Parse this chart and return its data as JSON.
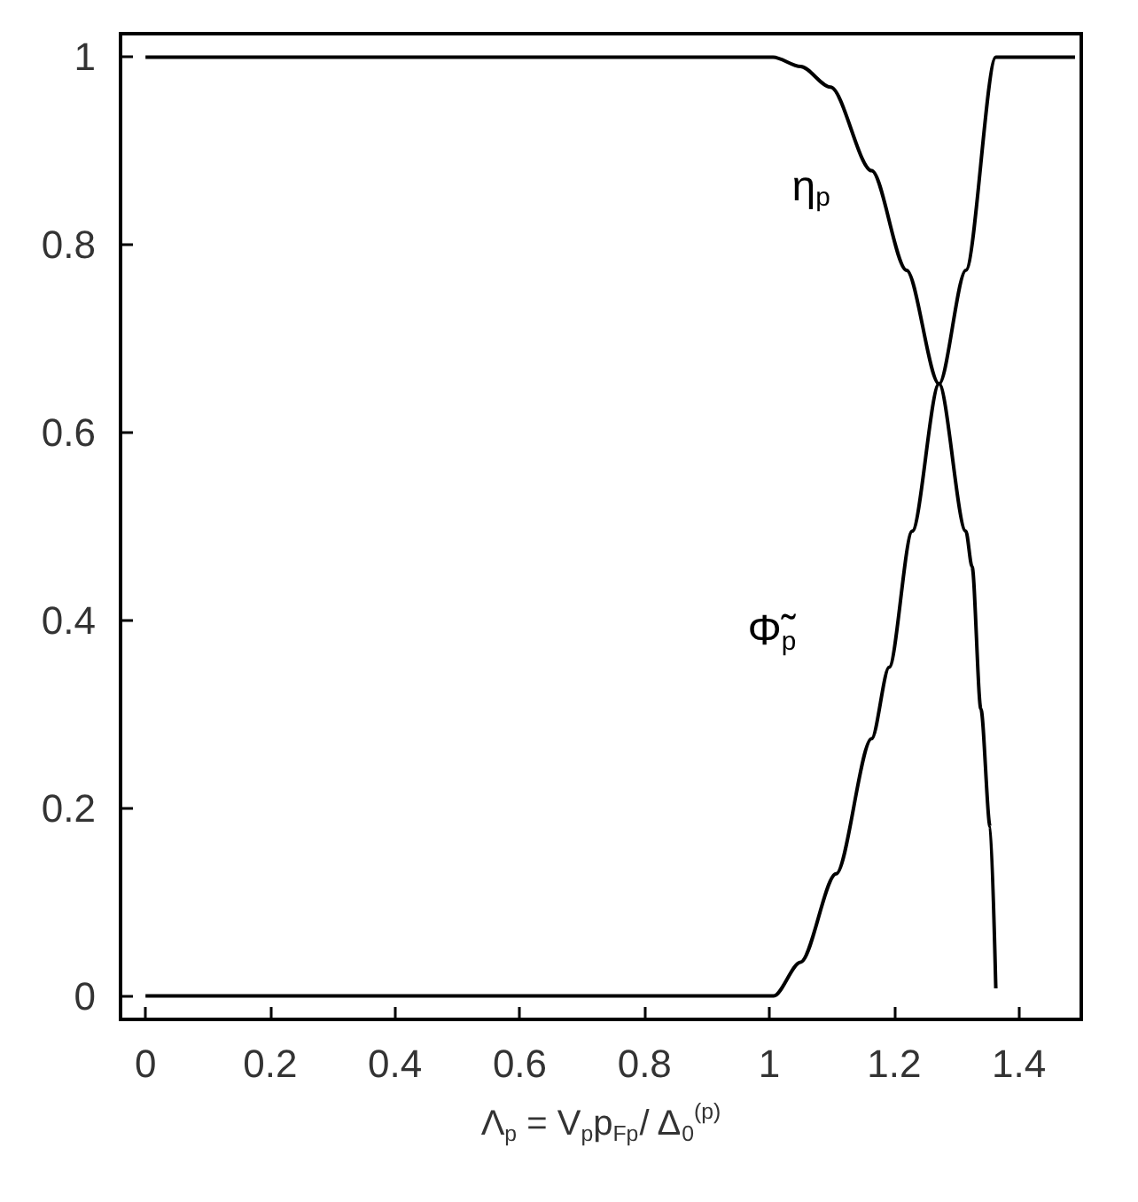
{
  "chart_data": {
    "type": "line",
    "xlabel": "Λ$_{p}$ = V$_{p}$p$_{Fp}$/ Δ$_{0}$$^{(p)}$",
    "xlim": [
      -0.04,
      1.5
    ],
    "xticks": [
      0,
      0.2,
      0.4,
      0.6,
      0.8,
      1,
      1.2,
      1.4
    ],
    "ylim": [
      -0.025,
      1.025
    ],
    "yticks": [
      0,
      0.2,
      0.4,
      0.6,
      0.8,
      1
    ],
    "grid": false,
    "legend": false,
    "marker": "none",
    "line_style": "solid",
    "series": [
      {
        "name": "η$_{p}$",
        "color": "#000000",
        "x": [
          0,
          1.006,
          1.05,
          1.098,
          1.164,
          1.22,
          1.272,
          1.315,
          1.325,
          1.339,
          1.354,
          1.363
        ],
        "values": [
          1,
          1,
          0.99,
          0.968,
          0.879,
          0.773,
          0.652,
          0.495,
          0.457,
          0.306,
          0.18,
          0.008
        ]
      },
      {
        "name": "Φ̃$_{p}$",
        "color": "#000000",
        "x": [
          0,
          1.007,
          1.05,
          1.107,
          1.164,
          1.192,
          1.229,
          1.272,
          1.315,
          1.363,
          1.49
        ],
        "values": [
          0,
          0,
          0.036,
          0.13,
          0.274,
          0.35,
          0.495,
          0.652,
          0.773,
          1,
          1
        ]
      }
    ]
  }
}
